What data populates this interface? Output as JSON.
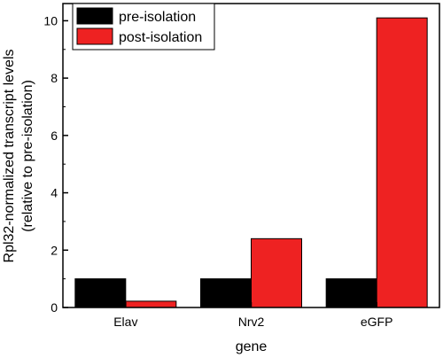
{
  "chart_data": {
    "type": "bar",
    "categories": [
      "Elav",
      "Nrv2",
      "eGFP"
    ],
    "series": [
      {
        "name": "pre-isolation",
        "values": [
          1.0,
          1.0,
          1.0
        ],
        "color": "#000000"
      },
      {
        "name": "post-isolation",
        "values": [
          0.22,
          2.4,
          10.1
        ],
        "color": "#ee2222"
      }
    ],
    "xlabel": "gene",
    "ylabel_line1": "Rpl32-normalized transcript levels",
    "ylabel_line2": "(relative to pre-isolation)",
    "ylim": [
      0,
      10.6
    ],
    "yticks": [
      0,
      2,
      4,
      6,
      8,
      10
    ],
    "legend_position": "top-left",
    "grid": false
  }
}
